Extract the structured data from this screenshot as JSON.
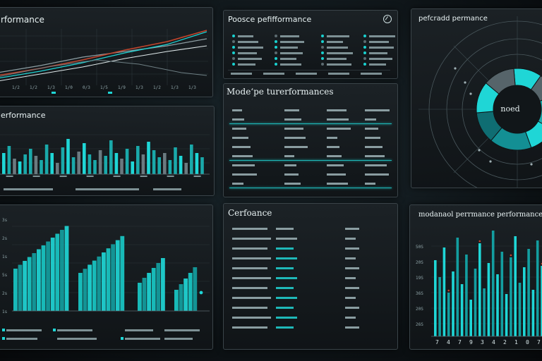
{
  "colors": {
    "accent": "#1fd6d6",
    "accent_dark": "#138f94",
    "accent_mid": "#1aa9aa",
    "grey": "#56646a",
    "red": "#c2452d",
    "panel_bg": "#14191c"
  },
  "panels": {
    "top_left": {
      "title": "rformance",
      "ticks": [
        "1/2",
        "1/2",
        "1/3",
        "1/0",
        "0/3",
        "1/5",
        "1/9",
        "1/3",
        "1/2",
        "1/3",
        "1/3"
      ]
    },
    "top_center": {
      "title": "Poosce pefifformance",
      "icon": "chart-badge-icon"
    },
    "top_right": {
      "title": "pefcradd permance",
      "center_label": "noed"
    },
    "mid_left": {
      "title": "erformance"
    },
    "mid_center": {
      "title": "Modeʻpe turerformances"
    },
    "bottom_left": {
      "y_ticks": [
        "3s",
        "2s",
        "1s",
        "5s",
        "2s",
        "1s"
      ]
    },
    "bottom_center": {
      "title": "Cerfoance"
    },
    "bottom_right": {
      "title": "modanaol perrmance performance",
      "y_ticks": [
        "50S",
        "20S",
        "19S",
        "36S",
        "20S",
        "26S"
      ],
      "x_ticks": [
        "7",
        "4",
        "7",
        "9",
        "3",
        "4",
        "2",
        "1",
        "0",
        "7"
      ]
    }
  }
}
